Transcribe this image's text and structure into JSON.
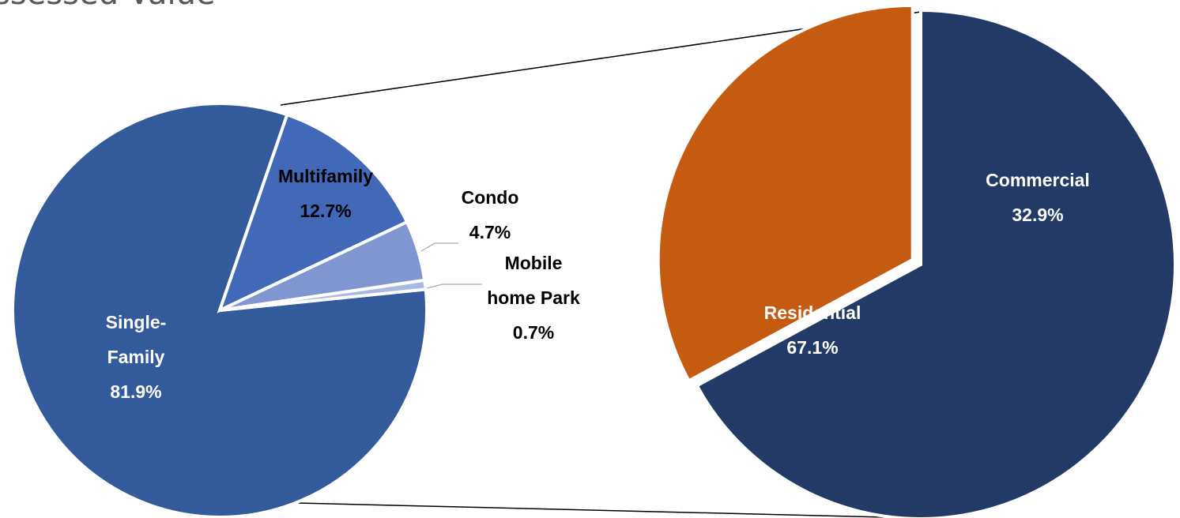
{
  "chart_data": [
    {
      "type": "pie",
      "title": "ssessed Value",
      "categories": [
        "Residential",
        "Commercial"
      ],
      "values": [
        67.1,
        32.9
      ],
      "value_labels": [
        "67.1%",
        "32.9%"
      ],
      "colors": [
        "#233966",
        "#c55a11"
      ]
    },
    {
      "type": "pie",
      "categories": [
        "Single-\nFamily",
        "Multifamily",
        "Condo",
        "Mobile\nhome Park"
      ],
      "values": [
        81.9,
        12.7,
        4.7,
        0.7
      ],
      "value_labels": [
        "81.9%",
        "12.7%",
        "4.7%",
        "0.7%"
      ],
      "colors": [
        "#335a9a",
        "#4169b8",
        "#7f96d0",
        "#a9b9e2"
      ]
    }
  ]
}
